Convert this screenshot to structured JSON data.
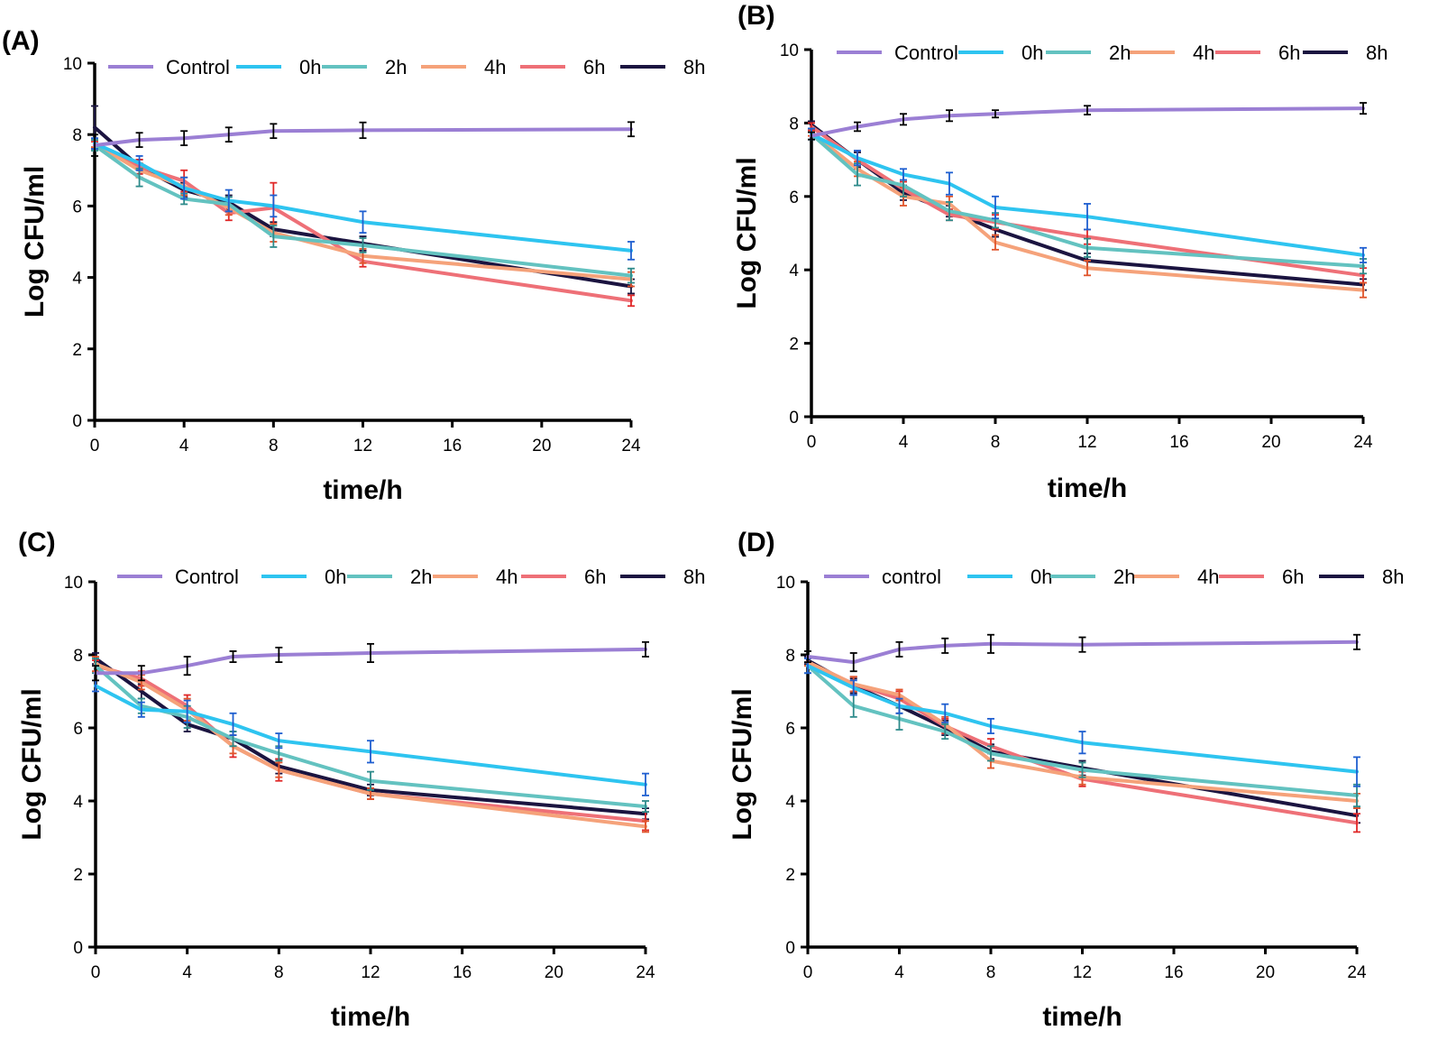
{
  "figure": {
    "panels": [
      "(A)",
      "(B)",
      "(C)",
      "(D)"
    ]
  },
  "series_colors": {
    "Control": "#9b7fd4",
    "0h": "#2ec4f0",
    "2h": "#63c2c0",
    "4h": "#f5a27a",
    "6h": "#ee7077",
    "8h": "#1b1440"
  },
  "error_bar_colors": {
    "Control": "#000000",
    "0h": "#1f5fd0",
    "2h": "#2e8b8b",
    "4h": "#e0542b",
    "6h": "#e02828",
    "8h": "#1b1440"
  },
  "chart_data": [
    {
      "type": "line",
      "panel": "(A)",
      "title": "",
      "xlabel": "time/h",
      "ylabel": "Log CFU/ml",
      "xlim": [
        0,
        24
      ],
      "ylim": [
        0,
        10
      ],
      "xticks": [
        0,
        4,
        8,
        12,
        16,
        20,
        24
      ],
      "yticks": [
        0,
        2,
        4,
        6,
        8,
        10
      ],
      "legend_position": "top",
      "x": [
        0,
        2,
        4,
        6,
        8,
        12,
        24
      ],
      "series": [
        {
          "name": "Control",
          "values": [
            7.7,
            7.85,
            7.9,
            8.0,
            8.1,
            8.12,
            8.15
          ],
          "errors": [
            0.3,
            0.2,
            0.2,
            0.2,
            0.2,
            0.22,
            0.2
          ]
        },
        {
          "name": "0h",
          "values": [
            7.75,
            7.2,
            6.5,
            6.15,
            6.0,
            5.55,
            4.75
          ],
          "errors": [
            0.15,
            0.2,
            0.3,
            0.3,
            0.3,
            0.3,
            0.25
          ]
        },
        {
          "name": "2h",
          "values": [
            7.7,
            6.8,
            6.2,
            6.05,
            5.15,
            4.9,
            4.05
          ],
          "errors": [
            0.15,
            0.25,
            0.15,
            0.2,
            0.3,
            0.2,
            0.2
          ]
        },
        {
          "name": "4h",
          "values": [
            7.75,
            7.0,
            6.55,
            5.95,
            5.25,
            4.6,
            3.95
          ],
          "errors": [
            0.1,
            0.2,
            0.25,
            0.2,
            0.25,
            0.2,
            0.2
          ]
        },
        {
          "name": "6h",
          "values": [
            7.7,
            7.1,
            6.7,
            5.8,
            5.95,
            4.45,
            3.35
          ],
          "errors": [
            0.1,
            0.2,
            0.3,
            0.2,
            0.7,
            0.15,
            0.15
          ]
        },
        {
          "name": "8h",
          "values": [
            8.2,
            7.1,
            6.45,
            6.1,
            5.35,
            4.95,
            3.75
          ],
          "errors": [
            0.6,
            0.2,
            0.2,
            0.2,
            0.2,
            0.2,
            0.2
          ]
        }
      ]
    },
    {
      "type": "line",
      "panel": "(B)",
      "title": "",
      "xlabel": "time/h",
      "ylabel": "Log CFU/ml",
      "xlim": [
        0,
        24
      ],
      "ylim": [
        0,
        10
      ],
      "xticks": [
        0,
        4,
        8,
        12,
        16,
        20,
        24
      ],
      "yticks": [
        0,
        2,
        4,
        6,
        8,
        10
      ],
      "legend_position": "top",
      "x": [
        0,
        2,
        4,
        6,
        8,
        12,
        24
      ],
      "series": [
        {
          "name": "Control",
          "values": [
            7.65,
            7.9,
            8.1,
            8.2,
            8.25,
            8.35,
            8.4
          ],
          "errors": [
            0.1,
            0.12,
            0.15,
            0.15,
            0.1,
            0.12,
            0.15
          ]
        },
        {
          "name": "0h",
          "values": [
            7.7,
            7.05,
            6.6,
            6.35,
            5.7,
            5.45,
            4.4
          ],
          "errors": [
            0.15,
            0.2,
            0.15,
            0.3,
            0.3,
            0.35,
            0.2
          ]
        },
        {
          "name": "2h",
          "values": [
            7.7,
            6.6,
            6.3,
            5.6,
            5.35,
            4.6,
            4.1
          ],
          "errors": [
            0.15,
            0.3,
            0.3,
            0.25,
            0.2,
            0.25,
            0.2
          ]
        },
        {
          "name": "4h",
          "values": [
            7.75,
            6.75,
            6.0,
            5.8,
            4.75,
            4.05,
            3.45
          ],
          "errors": [
            0.1,
            0.2,
            0.25,
            0.2,
            0.2,
            0.2,
            0.2
          ]
        },
        {
          "name": "6h",
          "values": [
            7.9,
            7.0,
            6.2,
            5.5,
            5.3,
            4.9,
            3.85
          ],
          "errors": [
            0.1,
            0.25,
            0.2,
            0.15,
            0.2,
            0.2,
            0.2
          ]
        },
        {
          "name": "8h",
          "values": [
            7.95,
            7.0,
            6.1,
            5.6,
            5.1,
            4.25,
            3.6
          ],
          "errors": [
            0.1,
            0.2,
            0.2,
            0.15,
            0.2,
            0.2,
            0.15
          ]
        }
      ]
    },
    {
      "type": "line",
      "panel": "(C)",
      "title": "",
      "xlabel": "time/h",
      "ylabel": "Log CFU/ml",
      "xlim": [
        0,
        24
      ],
      "ylim": [
        0,
        10
      ],
      "xticks": [
        0,
        4,
        8,
        12,
        16,
        20,
        24
      ],
      "yticks": [
        0,
        2,
        4,
        6,
        8,
        10
      ],
      "legend_position": "top",
      "x": [
        0,
        2,
        4,
        6,
        8,
        12,
        24
      ],
      "series": [
        {
          "name": "Control",
          "values": [
            7.5,
            7.5,
            7.7,
            7.95,
            8.0,
            8.05,
            8.15
          ],
          "errors": [
            0.2,
            0.2,
            0.25,
            0.15,
            0.2,
            0.25,
            0.2
          ]
        },
        {
          "name": "0h",
          "values": [
            7.15,
            6.5,
            6.45,
            6.1,
            5.65,
            5.35,
            4.45
          ],
          "errors": [
            0.15,
            0.2,
            0.3,
            0.3,
            0.2,
            0.3,
            0.3
          ]
        },
        {
          "name": "2h",
          "values": [
            7.7,
            6.6,
            6.3,
            5.7,
            5.3,
            4.55,
            3.85
          ],
          "errors": [
            0.2,
            0.2,
            0.3,
            0.2,
            0.2,
            0.25,
            0.15
          ]
        },
        {
          "name": "4h",
          "values": [
            7.75,
            7.25,
            6.5,
            5.5,
            4.85,
            4.2,
            3.3
          ],
          "errors": [
            0.2,
            0.2,
            0.3,
            0.2,
            0.2,
            0.15,
            0.15
          ]
        },
        {
          "name": "6h",
          "values": [
            7.7,
            7.35,
            6.6,
            5.5,
            4.85,
            4.2,
            3.45
          ],
          "errors": [
            0.15,
            0.2,
            0.3,
            0.3,
            0.3,
            0.15,
            0.25
          ]
        },
        {
          "name": "8h",
          "values": [
            7.9,
            7.0,
            6.1,
            5.7,
            4.95,
            4.3,
            3.65
          ],
          "errors": [
            0.15,
            0.2,
            0.2,
            0.2,
            0.2,
            0.15,
            0.15
          ]
        }
      ]
    },
    {
      "type": "line",
      "panel": "(D)",
      "title": "",
      "xlabel": "time/h",
      "ylabel": "Log CFU/ml",
      "xlim": [
        0,
        24
      ],
      "ylim": [
        0,
        10
      ],
      "xticks": [
        0,
        4,
        8,
        12,
        16,
        20,
        24
      ],
      "yticks": [
        0,
        2,
        4,
        6,
        8,
        10
      ],
      "legend_position": "top",
      "x": [
        0,
        2,
        4,
        6,
        8,
        12,
        24
      ],
      "series": [
        {
          "name": "control",
          "values": [
            7.95,
            7.8,
            8.15,
            8.25,
            8.3,
            8.28,
            8.35
          ],
          "errors": [
            0.15,
            0.25,
            0.2,
            0.2,
            0.25,
            0.2,
            0.2
          ]
        },
        {
          "name": "0h",
          "values": [
            7.7,
            7.1,
            6.6,
            6.4,
            6.05,
            5.6,
            4.8
          ],
          "errors": [
            0.2,
            0.2,
            0.2,
            0.25,
            0.2,
            0.3,
            0.4
          ]
        },
        {
          "name": "2h",
          "values": [
            7.7,
            6.6,
            6.25,
            5.9,
            5.3,
            4.85,
            4.15
          ],
          "errors": [
            0.2,
            0.3,
            0.3,
            0.2,
            0.2,
            0.2,
            0.3
          ]
        },
        {
          "name": "4h",
          "values": [
            7.8,
            7.2,
            6.9,
            6.1,
            5.1,
            4.65,
            4.0
          ],
          "errors": [
            0.1,
            0.2,
            0.15,
            0.2,
            0.2,
            0.2,
            0.2
          ]
        },
        {
          "name": "6h",
          "values": [
            7.8,
            7.2,
            6.8,
            6.05,
            5.5,
            4.6,
            3.4
          ],
          "errors": [
            0.1,
            0.2,
            0.2,
            0.2,
            0.2,
            0.2,
            0.25
          ]
        },
        {
          "name": "8h",
          "values": [
            7.85,
            7.15,
            6.6,
            6.0,
            5.35,
            4.9,
            3.6
          ],
          "errors": [
            0.1,
            0.2,
            0.2,
            0.2,
            0.2,
            0.2,
            0.2
          ]
        }
      ]
    }
  ]
}
